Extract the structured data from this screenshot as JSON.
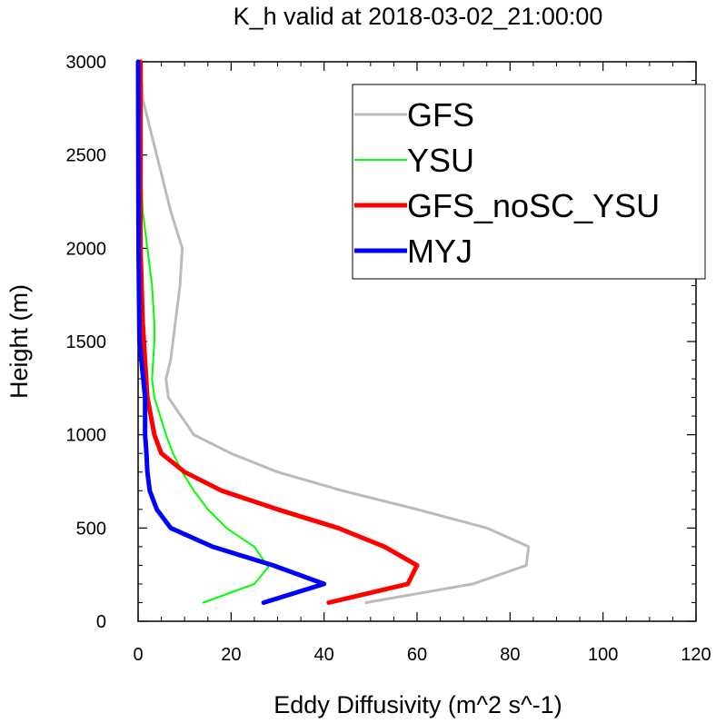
{
  "chart_data": {
    "type": "line",
    "title": "K_h valid at 2018-03-02_21:00:00",
    "xlabel": "Eddy Diffusivity (m^2 s^-1)",
    "ylabel": "Height (m)",
    "xlim": [
      0,
      120
    ],
    "ylim": [
      0,
      3000
    ],
    "xticks": [
      0,
      20,
      40,
      60,
      80,
      100,
      120
    ],
    "yticks": [
      0,
      500,
      1000,
      1500,
      2000,
      2500,
      3000
    ],
    "grid": false,
    "legend_position": "top-right",
    "series": [
      {
        "name": "GFS",
        "color": "#bbbbbb",
        "line_width": 3,
        "points": [
          [
            49,
            100
          ],
          [
            72,
            200
          ],
          [
            83.5,
            300
          ],
          [
            84,
            400
          ],
          [
            75,
            500
          ],
          [
            60,
            600
          ],
          [
            44,
            700
          ],
          [
            30,
            800
          ],
          [
            20,
            900
          ],
          [
            12,
            1000
          ],
          [
            6.5,
            1200
          ],
          [
            6,
            1300
          ],
          [
            7,
            1400
          ],
          [
            8,
            1600
          ],
          [
            9,
            1800
          ],
          [
            9.5,
            2000
          ],
          [
            7,
            2200
          ],
          [
            5,
            2400
          ],
          [
            3,
            2600
          ],
          [
            1,
            2800
          ],
          [
            0.5,
            3000
          ]
        ]
      },
      {
        "name": "YSU",
        "color": "#00ff00",
        "line_width": 2,
        "points": [
          [
            14,
            100
          ],
          [
            25,
            200
          ],
          [
            28,
            290
          ],
          [
            25,
            400
          ],
          [
            19,
            500
          ],
          [
            15,
            600
          ],
          [
            12,
            700
          ],
          [
            9.5,
            800
          ],
          [
            7.5,
            900
          ],
          [
            6,
            1000
          ],
          [
            3.5,
            1200
          ],
          [
            3,
            1300
          ],
          [
            3.5,
            1500
          ],
          [
            3.5,
            1600
          ],
          [
            3,
            1800
          ],
          [
            2,
            2000
          ],
          [
            1,
            2200
          ],
          [
            0.5,
            2500
          ],
          [
            0.3,
            3000
          ]
        ]
      },
      {
        "name": "GFS_noSC_YSU",
        "color": "#ff0000",
        "line_width": 5,
        "points": [
          [
            41,
            100
          ],
          [
            58,
            200
          ],
          [
            60,
            300
          ],
          [
            53,
            400
          ],
          [
            43,
            500
          ],
          [
            30,
            600
          ],
          [
            18,
            700
          ],
          [
            10,
            800
          ],
          [
            5,
            900
          ],
          [
            3.5,
            1000
          ],
          [
            2,
            1200
          ],
          [
            1,
            1600
          ],
          [
            0.5,
            2000
          ],
          [
            0.5,
            2500
          ],
          [
            0.5,
            3000
          ]
        ]
      },
      {
        "name": "MYJ",
        "color": "#0000ff",
        "line_width": 5,
        "points": [
          [
            27,
            100
          ],
          [
            40,
            200
          ],
          [
            29,
            300
          ],
          [
            16,
            400
          ],
          [
            7,
            500
          ],
          [
            4,
            600
          ],
          [
            2.5,
            700
          ],
          [
            2,
            800
          ],
          [
            1.8,
            900
          ],
          [
            1.5,
            1000
          ],
          [
            1.5,
            1200
          ],
          [
            0.3,
            1500
          ],
          [
            0.1,
            2000
          ],
          [
            0,
            3000
          ]
        ]
      }
    ]
  }
}
